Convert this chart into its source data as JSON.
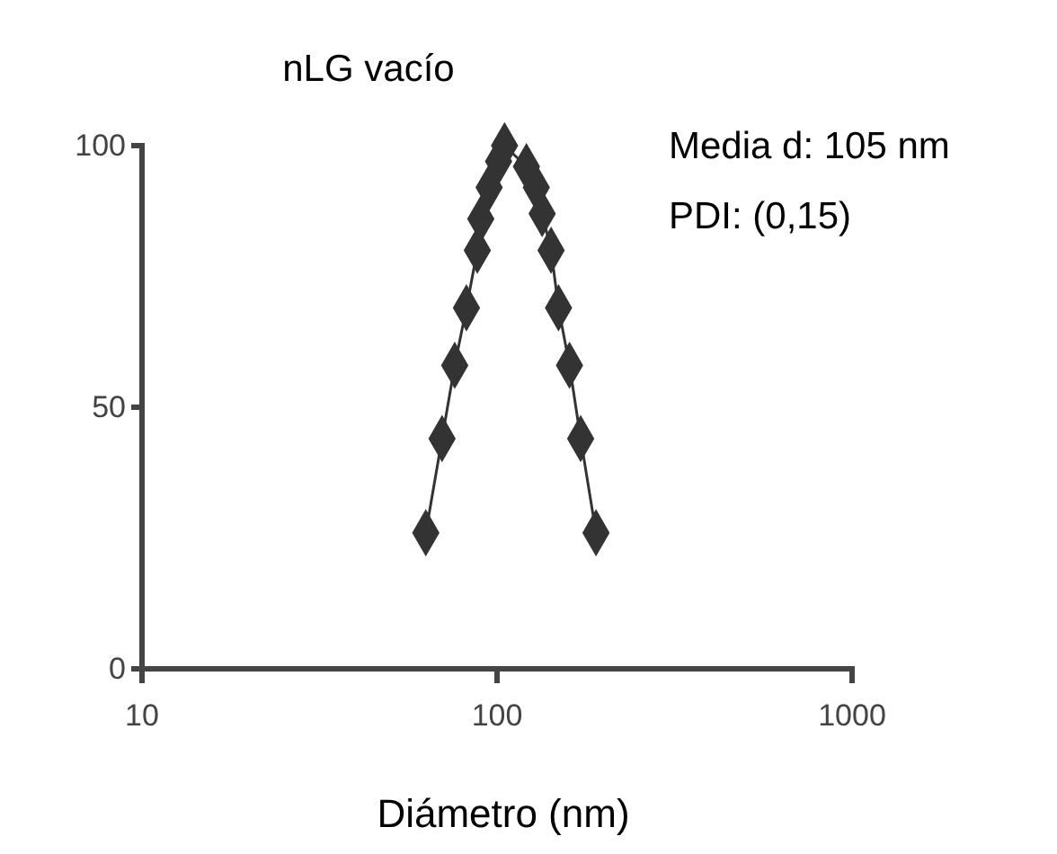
{
  "chart_data": {
    "type": "line",
    "title": "nLG vacío",
    "xlabel": "Diámetro (nm)",
    "annotations": [
      "Media d: 105 nm",
      "PDI: (0,15)"
    ],
    "x": [
      63,
      70,
      76,
      82,
      88,
      90,
      95,
      101,
      105,
      121,
      129,
      134,
      142,
      149,
      160,
      172,
      190
    ],
    "series": [
      {
        "color": "#333333",
        "values": [
          26,
          44,
          58,
          69,
          80,
          86,
          92,
          97,
          100,
          96,
          92,
          87,
          80,
          69,
          58,
          44,
          26
        ]
      }
    ],
    "log": "x",
    "xlim": [
      10,
      1000
    ],
    "xticks": [
      10,
      100,
      1000
    ],
    "ylim": [
      0,
      100
    ],
    "yticks": [
      0,
      50,
      100
    ],
    "grid": false,
    "marker": "diamond",
    "line_style": "solid"
  }
}
